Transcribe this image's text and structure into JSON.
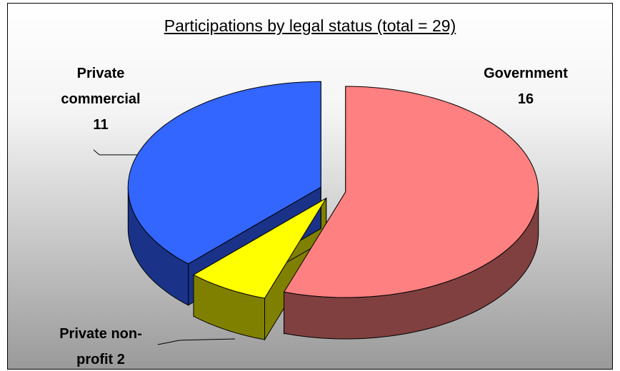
{
  "chart_data": {
    "type": "pie",
    "title": "Participations by legal status (total = 29)",
    "categories": [
      "Government",
      "Private non-profit",
      "Private commercial"
    ],
    "values": [
      16,
      2,
      11
    ],
    "colors": [
      "#ff8080",
      "#ffff00",
      "#3366ff"
    ],
    "side_colors": [
      "#804040",
      "#808000",
      "#1a3388"
    ]
  }
}
